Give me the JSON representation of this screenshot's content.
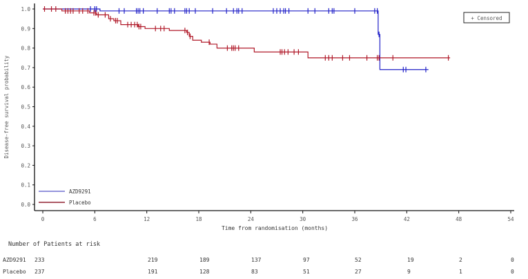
{
  "chart_data": {
    "type": "line",
    "subtype": "kaplan-meier",
    "xlabel": "Time from randomisation (months)",
    "ylabel": "Disease-free survival probability",
    "xlim": [
      0,
      54
    ],
    "ylim": [
      0,
      1.0
    ],
    "xticks": [
      "0",
      "6",
      "12",
      "18",
      "24",
      "30",
      "36",
      "42",
      "48",
      "54"
    ],
    "yticks": [
      "0.0",
      "0.1",
      "0.2",
      "0.3",
      "0.4",
      "0.5",
      "0.6",
      "0.7",
      "0.8",
      "0.9",
      "1.0"
    ],
    "censor_legend": "+ Censored",
    "series": [
      {
        "name": "AZD9291",
        "color": "#2020c8",
        "steps": [
          [
            0,
            1.0
          ],
          [
            6.6,
            0.99
          ],
          [
            38.7,
            0.87
          ],
          [
            38.9,
            0.69
          ],
          [
            44.5,
            0.69
          ]
        ],
        "censored": [
          5.5,
          6,
          6.2,
          8.8,
          9.4,
          10.8,
          11,
          11.2,
          11.6,
          13.2,
          14.6,
          14.8,
          15.2,
          16.4,
          16.6,
          16.9,
          17.6,
          19.6,
          21.2,
          22,
          22.4,
          22.6,
          23,
          26.6,
          27,
          27.4,
          27.8,
          28,
          28.4,
          30.6,
          31.4,
          33,
          33.4,
          33.6,
          36,
          38.3,
          38.6,
          38.8,
          41.6,
          41.9,
          44.2
        ]
      },
      {
        "name": "Placebo",
        "color": "#b01828",
        "steps": [
          [
            0,
            1.0
          ],
          [
            2.2,
            0.99
          ],
          [
            5.4,
            0.98
          ],
          [
            6.2,
            0.97
          ],
          [
            7.6,
            0.95
          ],
          [
            8.2,
            0.94
          ],
          [
            9,
            0.92
          ],
          [
            11,
            0.91
          ],
          [
            11.8,
            0.9
          ],
          [
            14.6,
            0.89
          ],
          [
            16.6,
            0.88
          ],
          [
            16.9,
            0.86
          ],
          [
            17.3,
            0.84
          ],
          [
            18.3,
            0.83
          ],
          [
            19.3,
            0.82
          ],
          [
            20.1,
            0.8
          ],
          [
            24.4,
            0.78
          ],
          [
            30.6,
            0.75
          ],
          [
            47,
            0.75
          ]
        ],
        "censored": [
          0.2,
          1,
          1.5,
          2.6,
          2.9,
          3.2,
          3.5,
          4.2,
          4.6,
          5.2,
          5.9,
          6.1,
          6.4,
          7.2,
          7.8,
          8.4,
          8.6,
          9.8,
          10.2,
          10.6,
          10.9,
          11.1,
          11.3,
          13,
          13.6,
          14,
          16.4,
          16.7,
          17,
          19.2,
          21.3,
          21.8,
          22,
          22.2,
          22.6,
          27.4,
          27.6,
          27.9,
          28.3,
          29,
          29.5,
          32.6,
          33,
          33.4,
          34.6,
          35.4,
          37.4,
          38.6,
          38.8,
          40.4,
          46.8
        ]
      }
    ]
  },
  "risk_table": {
    "title": "Number of Patients at risk",
    "rows": [
      {
        "label": "AZD9291",
        "values": [
          "233",
          "219",
          "189",
          "137",
          "97",
          "52",
          "19",
          "2",
          "0"
        ]
      },
      {
        "label": "Placebo",
        "values": [
          "237",
          "191",
          "128",
          "83",
          "51",
          "27",
          "9",
          "1",
          "0"
        ]
      }
    ]
  }
}
